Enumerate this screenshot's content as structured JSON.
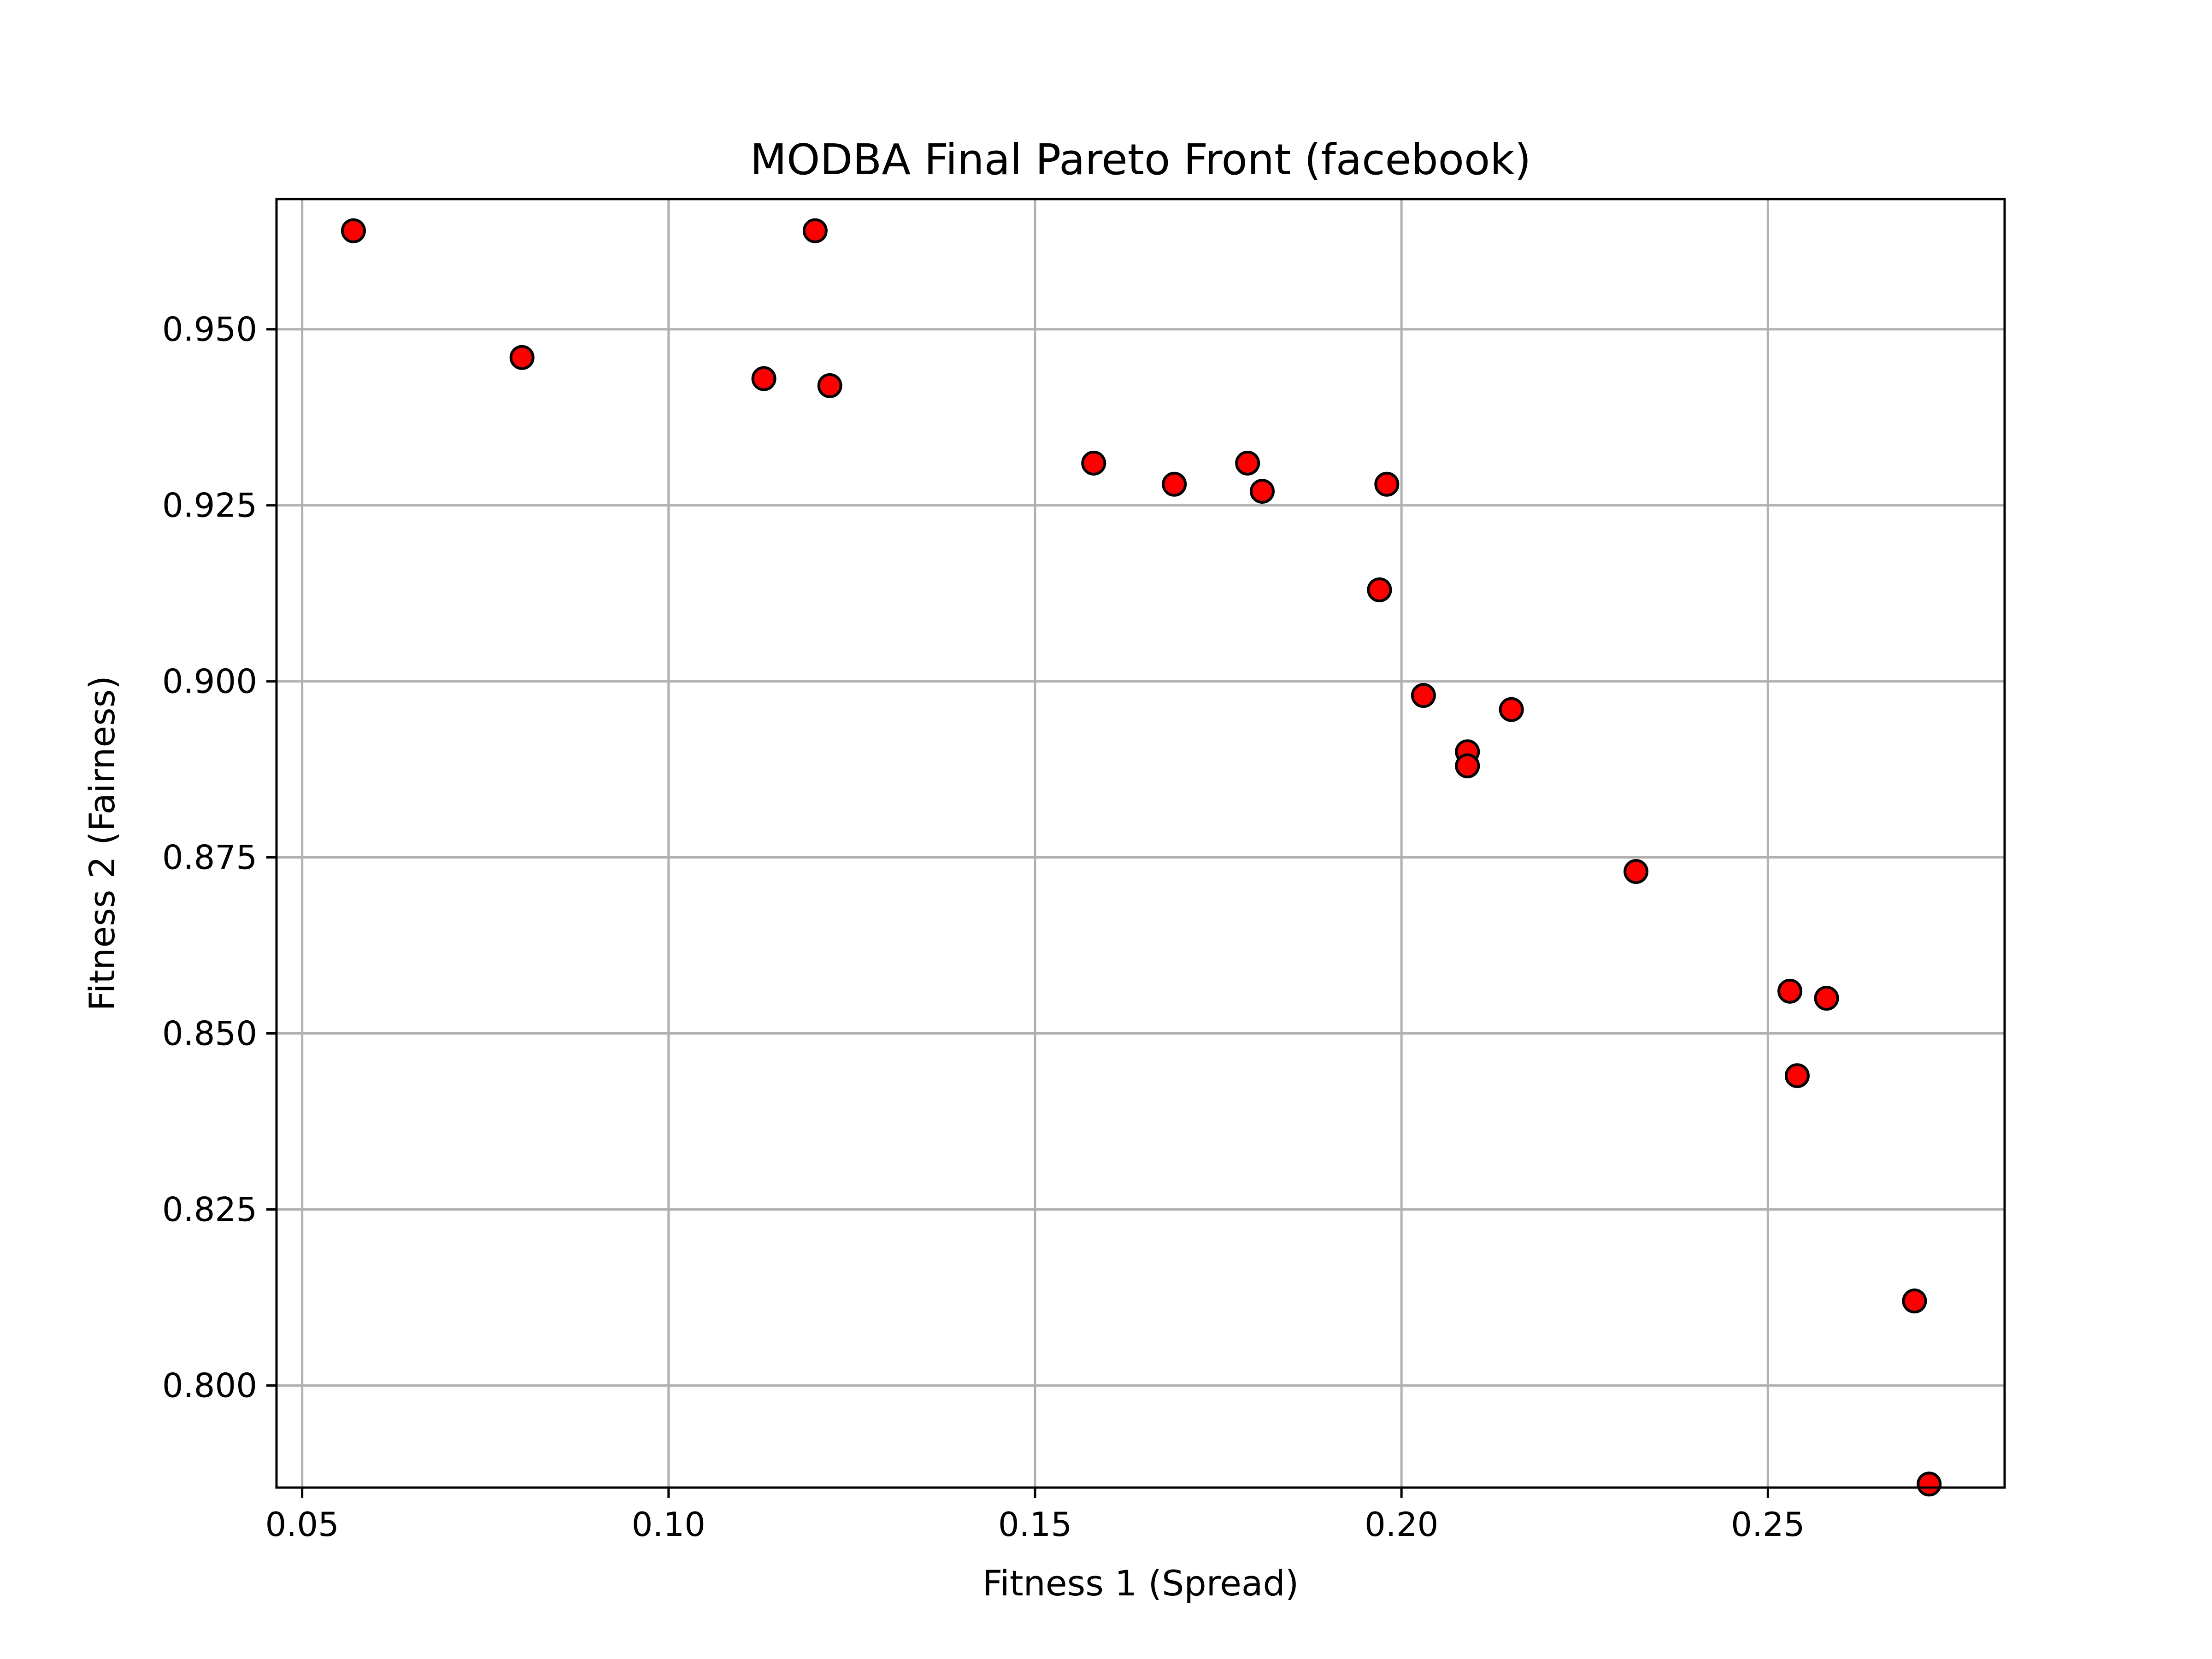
{
  "chart_data": {
    "type": "scatter",
    "title": "MODBA Final Pareto Front (facebook)",
    "xlabel": "Fitness 1 (Spread)",
    "ylabel": "Fitness 2 (Fairness)",
    "xlim": [
      0.0465,
      0.2823
    ],
    "ylim": [
      0.7855,
      0.9685
    ],
    "xticks": [
      0.05,
      0.1,
      0.15,
      0.2,
      0.25
    ],
    "xtick_labels": [
      "0.05",
      "0.10",
      "0.15",
      "0.20",
      "0.25"
    ],
    "yticks": [
      0.8,
      0.825,
      0.85,
      0.875,
      0.9,
      0.925,
      0.95
    ],
    "ytick_labels": [
      "0.800",
      "0.825",
      "0.850",
      "0.875",
      "0.900",
      "0.925",
      "0.950"
    ],
    "grid": true,
    "marker_color": "#ff0000",
    "marker_edge_color": "#000000",
    "points": [
      {
        "x": 0.057,
        "y": 0.964
      },
      {
        "x": 0.12,
        "y": 0.964
      },
      {
        "x": 0.08,
        "y": 0.946
      },
      {
        "x": 0.113,
        "y": 0.943
      },
      {
        "x": 0.122,
        "y": 0.942
      },
      {
        "x": 0.158,
        "y": 0.931
      },
      {
        "x": 0.169,
        "y": 0.928
      },
      {
        "x": 0.179,
        "y": 0.931
      },
      {
        "x": 0.181,
        "y": 0.927
      },
      {
        "x": 0.198,
        "y": 0.928
      },
      {
        "x": 0.197,
        "y": 0.913
      },
      {
        "x": 0.203,
        "y": 0.898
      },
      {
        "x": 0.215,
        "y": 0.896
      },
      {
        "x": 0.209,
        "y": 0.89
      },
      {
        "x": 0.209,
        "y": 0.888
      },
      {
        "x": 0.232,
        "y": 0.873
      },
      {
        "x": 0.253,
        "y": 0.856
      },
      {
        "x": 0.258,
        "y": 0.855
      },
      {
        "x": 0.254,
        "y": 0.844
      },
      {
        "x": 0.27,
        "y": 0.812
      },
      {
        "x": 0.272,
        "y": 0.786
      }
    ]
  }
}
